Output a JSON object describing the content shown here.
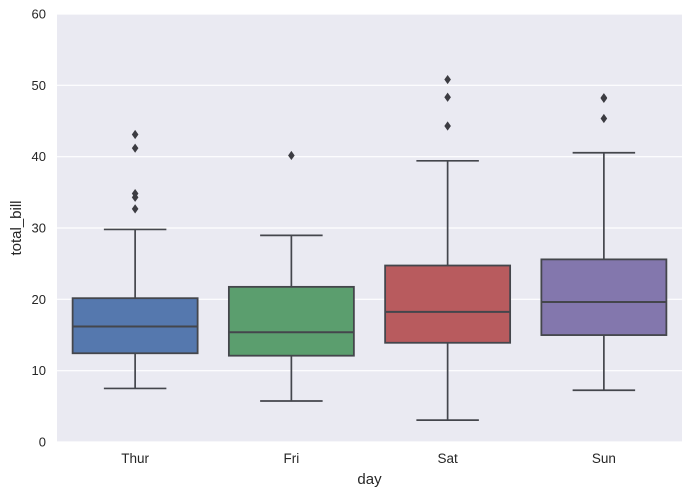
{
  "figure": {
    "background": "#ffffff",
    "plot_background": "#eaeaf2",
    "grid_color": "#ffffff",
    "text_color": "#262626"
  },
  "chart_data": {
    "type": "boxplot",
    "title": "",
    "xlabel": "day",
    "ylabel": "total_bill",
    "categories": [
      "Thur",
      "Fri",
      "Sat",
      "Sun"
    ],
    "ylim": [
      0,
      60
    ],
    "yticks": [
      0,
      10,
      20,
      30,
      40,
      50,
      60
    ],
    "ytick_labels": [
      "0",
      "10",
      "20",
      "30",
      "40",
      "50",
      "60"
    ],
    "legend": "none",
    "grid": {
      "axis": "y",
      "color": "#ffffff",
      "background": "#eaeaf2"
    },
    "style": {
      "line_color": "#44464c",
      "flier_color": "#3c3c42",
      "text_color": "#262626",
      "box_width_frac": 0.8,
      "cap_width_frac": 0.4
    },
    "series": [
      {
        "category": "Thur",
        "fill": "#5578ae",
        "whisker_low": 7.51,
        "q1": 12.44,
        "median": 16.2,
        "q3": 20.16,
        "whisker_high": 29.8,
        "outliers": [
          32.68,
          34.3,
          34.83,
          41.19,
          43.11
        ]
      },
      {
        "category": "Fri",
        "fill": "#5b9e6e",
        "whisker_low": 5.75,
        "q1": 12.1,
        "median": 15.38,
        "q3": 21.75,
        "whisker_high": 28.97,
        "outliers": [
          40.17
        ]
      },
      {
        "category": "Sat",
        "fill": "#b85b5e",
        "whisker_low": 3.07,
        "q1": 13.91,
        "median": 18.24,
        "q3": 24.74,
        "whisker_high": 39.42,
        "outliers": [
          44.3,
          48.33,
          50.81
        ]
      },
      {
        "category": "Sun",
        "fill": "#8377ad",
        "whisker_low": 7.25,
        "q1": 14.99,
        "median": 19.63,
        "q3": 25.6,
        "whisker_high": 40.55,
        "outliers": [
          45.35,
          48.17,
          48.27
        ]
      }
    ]
  }
}
